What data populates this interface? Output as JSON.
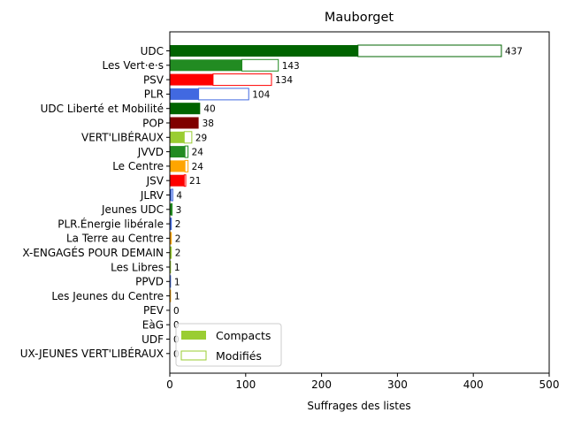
{
  "chart_data": {
    "type": "bar",
    "orientation": "horizontal",
    "stacked": true,
    "title": "Mauborget",
    "xlabel": "Suffrages des listes",
    "ylabel": "",
    "xlim": [
      0,
      500
    ],
    "xticks": [
      0,
      100,
      200,
      300,
      400,
      500
    ],
    "grid": false,
    "legend_position": "lower-left",
    "categories": [
      "UDC",
      "Les Vert·e·s",
      "PSV",
      "PLR",
      "UDC Liberté et Mobilité",
      "POP",
      "VERT'LIBÉRAUX",
      "JVVD",
      "Le Centre",
      "JSV",
      "JLRV",
      "Jeunes UDC",
      "PLR.Énergie libérale",
      "La Terre au Centre",
      "X-ENGAGÉS POUR DEMAIN",
      "Les Libres",
      "PPVD",
      "Les Jeunes du Centre",
      "PEV",
      "EàG",
      "UDF",
      "UX-JEUNES VERT'LIBÉRAUX"
    ],
    "colors": [
      "#006400",
      "#228b22",
      "#ff0000",
      "#4169e1",
      "#006400",
      "#800000",
      "#9acd32",
      "#228b22",
      "#ffa500",
      "#ff0000",
      "#4169e1",
      "#228b22",
      "#4169e1",
      "#ffa500",
      "#9acd32",
      "#9acd32",
      "#4169e1",
      "#ffa500",
      "#ffd700",
      "#ff0000",
      "#800080",
      "#9acd32"
    ],
    "series": [
      {
        "name": "Compacts",
        "style": "filled",
        "values": [
          248,
          95,
          57,
          38,
          40,
          38,
          19,
          20,
          20,
          19,
          2,
          2,
          1,
          1,
          1,
          0,
          0,
          0,
          0,
          0,
          0,
          0
        ]
      },
      {
        "name": "Modifiés",
        "style": "outline",
        "values": [
          189,
          48,
          77,
          66,
          0,
          0,
          10,
          4,
          4,
          2,
          2,
          1,
          1,
          1,
          1,
          1,
          1,
          1,
          0,
          0,
          0,
          0
        ]
      }
    ],
    "totals": [
      437,
      143,
      134,
      104,
      40,
      38,
      29,
      24,
      24,
      21,
      4,
      3,
      2,
      2,
      2,
      1,
      1,
      1,
      0,
      0,
      0,
      0
    ],
    "legend_colors": {
      "fill": "#9acd32",
      "edge": "#9acd32"
    }
  }
}
